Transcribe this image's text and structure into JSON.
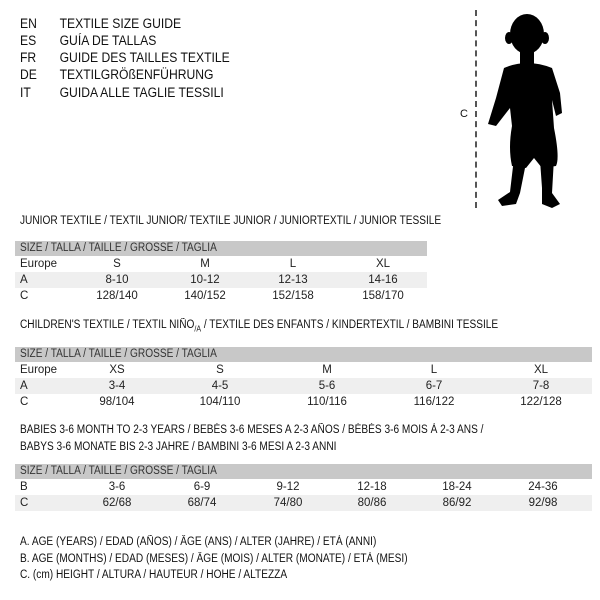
{
  "languages": [
    {
      "code": "EN",
      "text": "TEXTILE SIZE GUIDE"
    },
    {
      "code": "ES",
      "text": "GUÍA DE TALLAS"
    },
    {
      "code": "FR",
      "text": "GUIDE DES TAILLES TEXTILE"
    },
    {
      "code": "DE",
      "text": "TEXTILGRÖßENFÜHRUNG"
    },
    {
      "code": "IT",
      "text": "GUIDA ALLE TAGLIE TESSILI"
    }
  ],
  "figure": {
    "measure_label": "C",
    "icon": "baby-silhouette"
  },
  "junior": {
    "title": "JUNIOR TEXTILE / TEXTIL JUNIOR/ TEXTILE JUNIOR / JUNIORTEXTIL / JUNIOR TESSILE",
    "header": "SIZE / TALLA / TAILLE / GRÖSSE / TAGLIA",
    "rows": [
      {
        "label": "Europe",
        "cells": [
          "S",
          "M",
          "L",
          "XL"
        ]
      },
      {
        "label": "A",
        "cells": [
          "8-10",
          "10-12",
          "12-13",
          "14-16"
        ]
      },
      {
        "label": "C",
        "cells": [
          "128/140",
          "140/152",
          "152/158",
          "158/170"
        ]
      }
    ]
  },
  "children": {
    "title_a": "CHILDREN'S TEXTILE / TEXTIL NIÑO",
    "title_sub": "/A",
    "title_b": " / TEXTILE DES ENFANTS / KINDERTEXTIL / BAMBINI TESSILE",
    "header": "SIZE / TALLA / TAILLE / GRÖSSE / TAGLIA",
    "rows": [
      {
        "label": "Europe",
        "cells": [
          "XS",
          "S",
          "M",
          "L",
          "XL"
        ]
      },
      {
        "label": "A",
        "cells": [
          "3-4",
          "4-5",
          "5-6",
          "6-7",
          "7-8"
        ]
      },
      {
        "label": "C",
        "cells": [
          "98/104",
          "104/110",
          "110/116",
          "116/122",
          "122/128"
        ]
      }
    ]
  },
  "babies": {
    "title_line1": "BABIES 3-6 MONTH TO 2-3 YEARS / BEBÉS 3-6 MESES A 2-3 AÑOS / BÉBÉS 3-6 MOIS À 2-3 ANS /",
    "title_line2": "BABYS 3-6 MONATE BIS 2-3 JAHRE / BAMBINI 3-6 MESI A 2-3 ANNI",
    "header": "SIZE / TALLA / TAILLE / GRÖSSE / TAGLIA",
    "rows": [
      {
        "label": "B",
        "cells": [
          "3-6",
          "6-9",
          "9-12",
          "12-18",
          "18-24",
          "24-36"
        ]
      },
      {
        "label": "C",
        "cells": [
          "62/68",
          "68/74",
          "74/80",
          "80/86",
          "86/92",
          "92/98"
        ]
      }
    ]
  },
  "legend": [
    "A. AGE (YEARS) / EDAD (AÑOS) / ÂGE (ANS) / ALTER (JAHRE) / ETÀ (ANNI)",
    "B. AGE (MONTHS) / EDAD (MESES) / ÂGE (MOIS) / ALTER (MONATE) / ETÀ (MESI)",
    "C. (cm) HEIGHT / ALTURA / HAUTEUR / HÖHE / ALTEZZA"
  ]
}
